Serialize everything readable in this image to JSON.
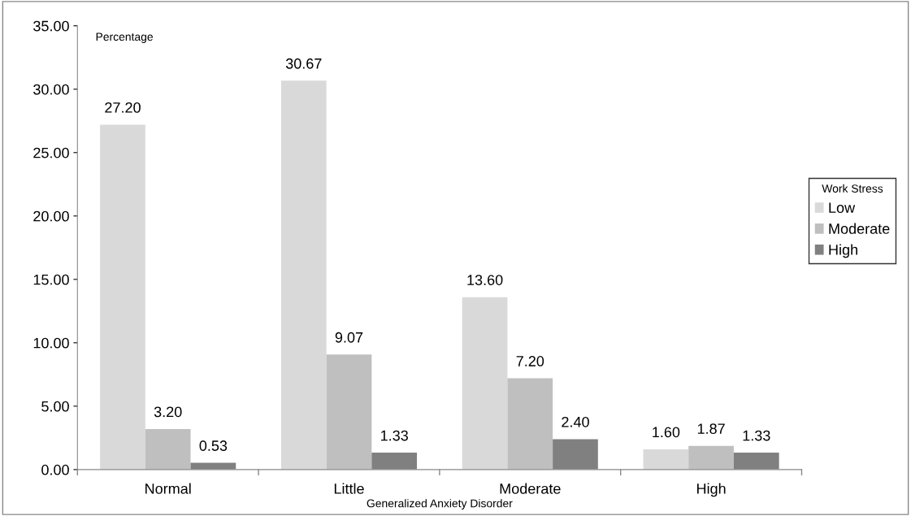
{
  "chart_data": {
    "type": "bar",
    "ylabel": "Percentage",
    "xlabel": "Generalized Anxiety Disorder",
    "legend_title": "Work Stress",
    "categories": [
      "Normal",
      "Little",
      "Moderate",
      "High"
    ],
    "series": [
      {
        "name": "Low",
        "color": "#d9d9d9",
        "values": [
          27.2,
          30.67,
          13.6,
          1.6
        ],
        "value_labels": [
          "27.20",
          "30.67",
          "13.60",
          "1.60"
        ]
      },
      {
        "name": "Moderate",
        "color": "#bfbfbf",
        "values": [
          3.2,
          9.07,
          7.2,
          1.87
        ],
        "value_labels": [
          "3.20",
          "9.07",
          "7.20",
          "1.87"
        ]
      },
      {
        "name": "High",
        "color": "#808080",
        "values": [
          0.53,
          1.33,
          2.4,
          1.33
        ],
        "value_labels": [
          "0.53",
          "1.33",
          "2.40",
          "1.33"
        ]
      }
    ],
    "ylim": [
      0,
      35
    ],
    "yticks": [
      {
        "value": 0,
        "label": "0.00"
      },
      {
        "value": 5,
        "label": "5.00"
      },
      {
        "value": 10,
        "label": "10.00"
      },
      {
        "value": 15,
        "label": "15.00"
      },
      {
        "value": 20,
        "label": "20.00"
      },
      {
        "value": 25,
        "label": "25.00"
      },
      {
        "value": 30,
        "label": "30.00"
      },
      {
        "value": 35,
        "label": "35.00"
      }
    ],
    "legend": "right",
    "grid": false
  }
}
